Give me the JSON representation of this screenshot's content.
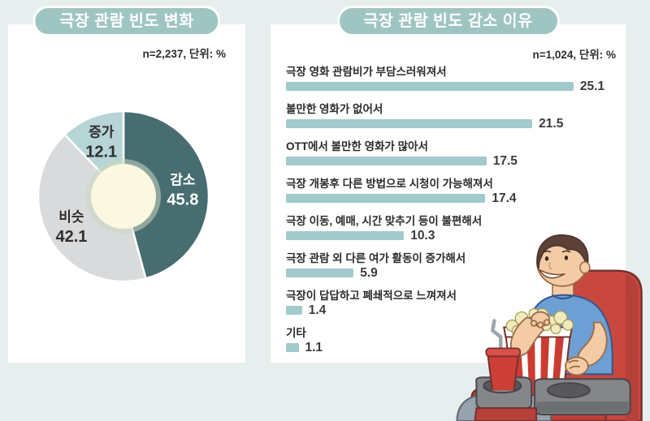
{
  "left_panel": {
    "title": "극장 관람 빈도 변화",
    "caption": "n=2,237, 단위: %"
  },
  "right_panel": {
    "title": "극장 관람 빈도 감소 이유",
    "caption": "n=1,024, 단위: %"
  },
  "chart_data": [
    {
      "type": "pie",
      "donut": true,
      "title": "극장 관람 빈도 변화",
      "subtitle": "n=2,237, 단위: %",
      "start_angle_deg": 0,
      "clockwise": true,
      "center_color": "#fbf7e1",
      "center_ring_color": "#ccd7c3",
      "slices": [
        {
          "label": "감소",
          "value": 45.8,
          "color": "#476d70",
          "text_color": "#ffffff"
        },
        {
          "label": "비슷",
          "value": 42.1,
          "color": "#d9dadb",
          "text_color": "#2f2f2f"
        },
        {
          "label": "증가",
          "value": 12.1,
          "color": "#b7d4d7",
          "text_color": "#2f2f2f"
        }
      ]
    },
    {
      "type": "bar",
      "orientation": "horizontal",
      "title": "극장 관람 빈도 감소 이유",
      "subtitle": "n=1,024, 단위: %",
      "bar_color": "#a2c9cc",
      "xlim": [
        0,
        26
      ],
      "categories": [
        "극장 영화 관람비가 부담스러워져서",
        "볼만한 영화가 없어서",
        "OTT에서 볼만한 영화가 많아서",
        "극장 개봉후 다른 방법으로 시청이 가능해져서",
        "극장 이동, 예매, 시간 맞추기 등이 불편해서",
        "극장 관람 외 다른 여가 활동이 증가해서",
        "극장이 답답하고 폐쇄적으로 느껴져서",
        "기타"
      ],
      "values": [
        25.1,
        21.5,
        17.5,
        17.4,
        10.3,
        5.9,
        1.4,
        1.1
      ]
    }
  ],
  "illustration": {
    "name": "man-eating-popcorn-in-theater-seat"
  },
  "colors": {
    "background": "#e6efee",
    "card": "#ffffff",
    "title_pill": "#9ec5c2",
    "title_pill_text": "#ffffff",
    "bar": "#a2c9cc",
    "donut_teal": "#476d70",
    "donut_gray": "#d9dadb",
    "donut_pale_blue": "#b7d4d7",
    "label_text": "#2b2b2b",
    "value_text": "#3b3b3b"
  }
}
